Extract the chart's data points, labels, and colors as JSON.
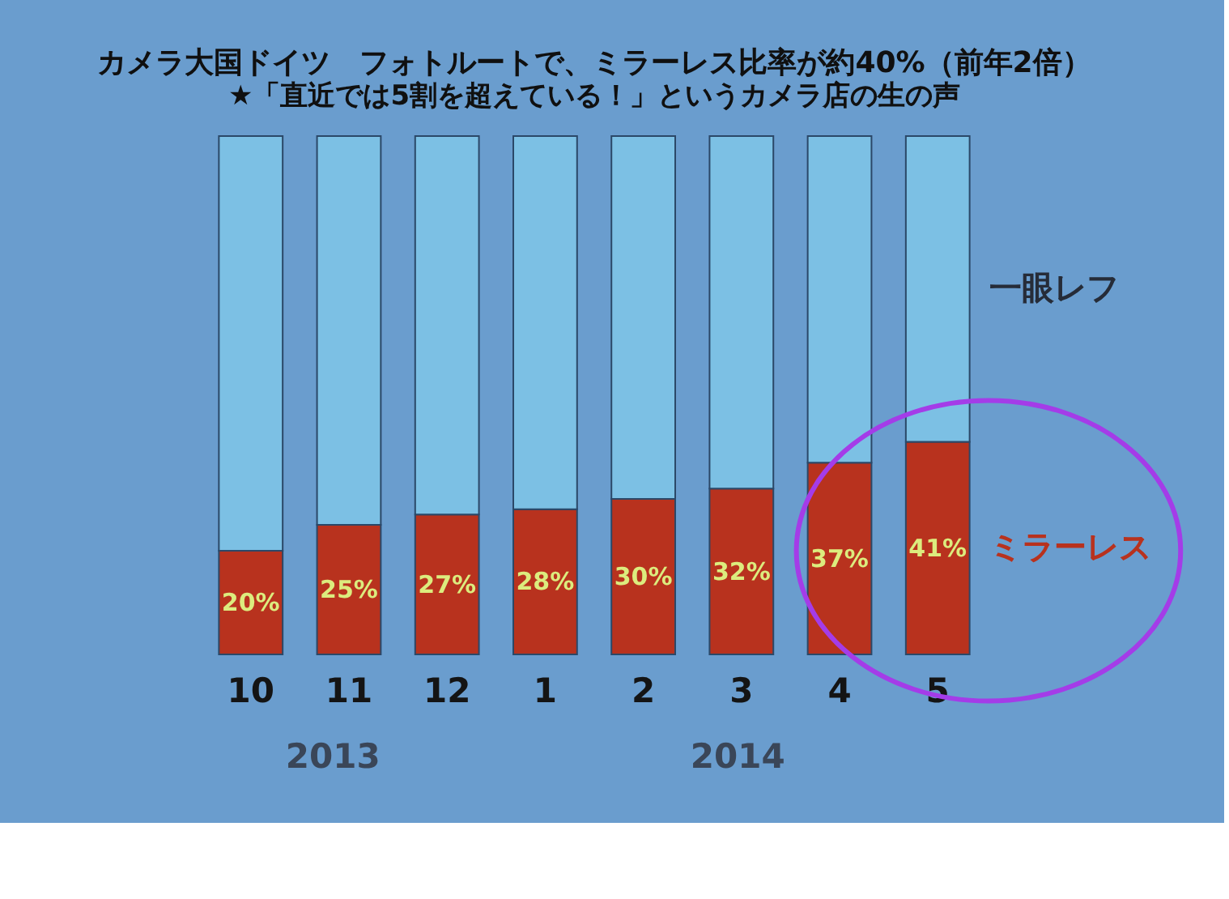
{
  "chart_data": {
    "type": "bar",
    "title": "カメラ大国ドイツ　フォトルートで、ミラーレス比率が約40%（前年2倍）",
    "subtitle": "★「直近では5割を超えている！」というカメラ店の生の声",
    "categories": [
      "10",
      "11",
      "12",
      "1",
      "2",
      "3",
      "4",
      "5"
    ],
    "stacked": true,
    "series": [
      {
        "name": "ミラーレス",
        "color": "#b8321e",
        "values": [
          20,
          25,
          27,
          28,
          30,
          32,
          37,
          41
        ],
        "value_labels": [
          "20%",
          "25%",
          "27%",
          "28%",
          "30%",
          "32%",
          "37%",
          "41%"
        ]
      },
      {
        "name": "一眼レフ",
        "color": "#7cc0e4",
        "values": [
          80,
          75,
          73,
          72,
          70,
          68,
          63,
          59
        ]
      }
    ],
    "ylim": [
      0,
      100
    ],
    "tick_labels": "x",
    "annotations": [
      "2013",
      "2014"
    ]
  }
}
